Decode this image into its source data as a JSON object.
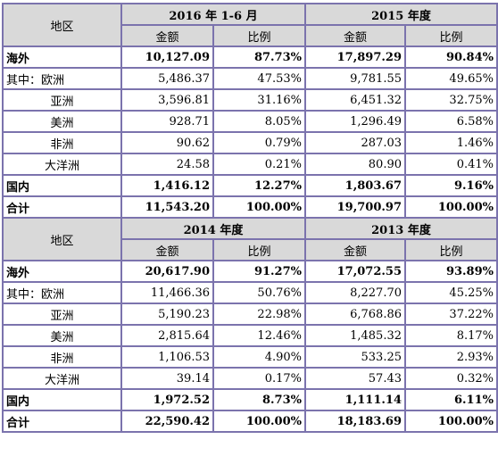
{
  "tables": [
    {
      "region_header": "地区",
      "periods": [
        "2016 年 1-6 月",
        "2015 年度"
      ],
      "amount_label": "金额",
      "ratio_label": "比例",
      "rows": [
        {
          "label": "海外",
          "bold": true,
          "indent": false,
          "v": [
            "10,127.09",
            "87.73%",
            "17,897.29",
            "90.84%"
          ]
        },
        {
          "label": "其中：欧洲",
          "bold": false,
          "indent": false,
          "v": [
            "5,486.37",
            "47.53%",
            "9,781.55",
            "49.65%"
          ]
        },
        {
          "label": "亚洲",
          "bold": false,
          "indent": true,
          "v": [
            "3,596.81",
            "31.16%",
            "6,451.32",
            "32.75%"
          ]
        },
        {
          "label": "美洲",
          "bold": false,
          "indent": true,
          "v": [
            "928.71",
            "8.05%",
            "1,296.49",
            "6.58%"
          ]
        },
        {
          "label": "非洲",
          "bold": false,
          "indent": true,
          "v": [
            "90.62",
            "0.79%",
            "287.03",
            "1.46%"
          ]
        },
        {
          "label": "大洋洲",
          "bold": false,
          "indent": true,
          "v": [
            "24.58",
            "0.21%",
            "80.90",
            "0.41%"
          ]
        },
        {
          "label": "国内",
          "bold": true,
          "indent": false,
          "v": [
            "1,416.12",
            "12.27%",
            "1,803.67",
            "9.16%"
          ]
        },
        {
          "label": "合计",
          "bold": true,
          "indent": false,
          "v": [
            "11,543.20",
            "100.00%",
            "19,700.97",
            "100.00%"
          ]
        }
      ]
    },
    {
      "region_header": "地区",
      "periods": [
        "2014 年度",
        "2013 年度"
      ],
      "amount_label": "金额",
      "ratio_label": "比例",
      "rows": [
        {
          "label": "海外",
          "bold": true,
          "indent": false,
          "v": [
            "20,617.90",
            "91.27%",
            "17,072.55",
            "93.89%"
          ]
        },
        {
          "label": "其中：欧洲",
          "bold": false,
          "indent": false,
          "v": [
            "11,466.36",
            "50.76%",
            "8,227.70",
            "45.25%"
          ]
        },
        {
          "label": "亚洲",
          "bold": false,
          "indent": true,
          "v": [
            "5,190.23",
            "22.98%",
            "6,768.86",
            "37.22%"
          ]
        },
        {
          "label": "美洲",
          "bold": false,
          "indent": true,
          "v": [
            "2,815.64",
            "12.46%",
            "1,485.32",
            "8.17%"
          ]
        },
        {
          "label": "非洲",
          "bold": false,
          "indent": true,
          "v": [
            "1,106.53",
            "4.90%",
            "533.25",
            "2.93%"
          ]
        },
        {
          "label": "大洋洲",
          "bold": false,
          "indent": true,
          "v": [
            "39.14",
            "0.17%",
            "57.43",
            "0.32%"
          ]
        },
        {
          "label": "国内",
          "bold": true,
          "indent": false,
          "v": [
            "1,972.52",
            "8.73%",
            "1,111.14",
            "6.11%"
          ]
        },
        {
          "label": "合计",
          "bold": true,
          "indent": false,
          "v": [
            "22,590.42",
            "100.00%",
            "18,183.69",
            "100.00%"
          ]
        }
      ]
    }
  ]
}
